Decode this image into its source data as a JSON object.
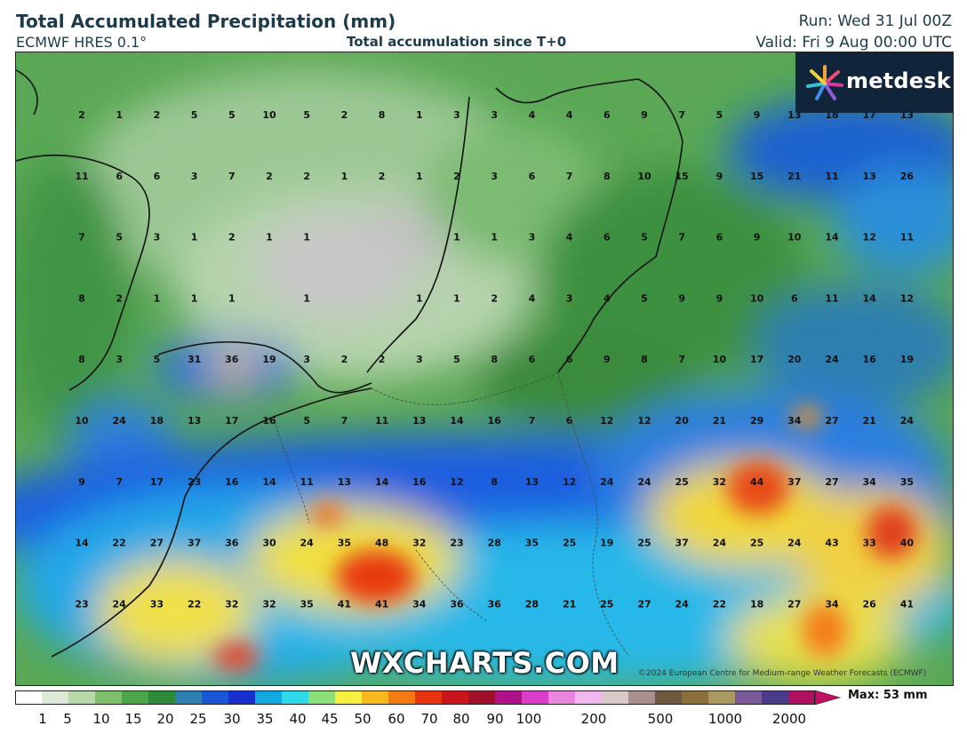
{
  "header": {
    "title": "Total Accumulated Precipitation (mm)",
    "model": "ECMWF HRES 0.1°",
    "subtitle": "Total accumulation since T+0",
    "run": "Run: Wed 31 Jul 00Z",
    "valid": "Valid: Fri 9 Aug 00:00 UTC"
  },
  "logo": {
    "text": "metdesk",
    "icon": "metdesk-star-icon"
  },
  "watermark": "WXCHARTS.COM",
  "copyright": "©2024 European Centre for Medium-range Weather Forecasts (ECMWF)",
  "colorbar": {
    "max_label": "Max: 53 mm",
    "ticks": [
      "1",
      "5",
      "10",
      "15",
      "20",
      "25",
      "30",
      "35",
      "40",
      "45",
      "50",
      "60",
      "70",
      "80",
      "90",
      "100",
      "200",
      "500",
      "1000",
      "2000"
    ],
    "colors": [
      "#ffffff",
      "#dfe9d8",
      "#b7d9a9",
      "#7fc06d",
      "#4ea64a",
      "#2d8a3a",
      "#2f7fb0",
      "#1b55d8",
      "#1a2fd0",
      "#12a8e0",
      "#2fd9e8",
      "#8be07a",
      "#f5f040",
      "#f8b81e",
      "#f57a14",
      "#e83310",
      "#c8141a",
      "#a0102a",
      "#b0128a",
      "#d93ec8",
      "#ea86e0",
      "#f2b8ee",
      "#d9c8c8",
      "#a89090",
      "#6e5a40",
      "#8a7038",
      "#a89a60",
      "#7a5a98",
      "#4a3a8a",
      "#b01060"
    ]
  },
  "map_values": [
    [
      "2",
      "1",
      "2",
      "5",
      "5",
      "10",
      "5",
      "2",
      "8",
      "1",
      "3",
      "3",
      "4",
      "4",
      "6",
      "9",
      "7",
      "5",
      "9",
      "13",
      "18",
      "17",
      "13"
    ],
    [
      "11",
      "6",
      "6",
      "3",
      "7",
      "2",
      "2",
      "1",
      "2",
      "1",
      "2",
      "3",
      "6",
      "7",
      "8",
      "10",
      "15",
      "9",
      "15",
      "21",
      "11",
      "13",
      "26"
    ],
    [
      "7",
      "5",
      "3",
      "1",
      "2",
      "1",
      "1",
      "",
      "",
      "",
      "1",
      "1",
      "3",
      "4",
      "6",
      "5",
      "7",
      "6",
      "9",
      "10",
      "14",
      "12",
      "11"
    ],
    [
      "8",
      "2",
      "1",
      "1",
      "1",
      "",
      "1",
      "",
      "",
      "1",
      "1",
      "2",
      "4",
      "3",
      "4",
      "5",
      "9",
      "9",
      "10",
      "6",
      "11",
      "14",
      "12"
    ],
    [
      "8",
      "3",
      "5",
      "31",
      "36",
      "19",
      "3",
      "2",
      "2",
      "3",
      "5",
      "8",
      "6",
      "6",
      "9",
      "8",
      "7",
      "10",
      "17",
      "20",
      "24",
      "16",
      "19"
    ],
    [
      "10",
      "24",
      "18",
      "13",
      "17",
      "16",
      "5",
      "7",
      "11",
      "13",
      "14",
      "16",
      "7",
      "6",
      "12",
      "12",
      "20",
      "21",
      "29",
      "34",
      "27",
      "21",
      "24"
    ],
    [
      "9",
      "7",
      "17",
      "23",
      "16",
      "14",
      "11",
      "13",
      "14",
      "16",
      "12",
      "8",
      "13",
      "12",
      "24",
      "24",
      "25",
      "32",
      "44",
      "37",
      "27",
      "34",
      "35"
    ],
    [
      "14",
      "22",
      "27",
      "37",
      "36",
      "30",
      "24",
      "35",
      "48",
      "32",
      "23",
      "28",
      "35",
      "25",
      "19",
      "25",
      "37",
      "24",
      "25",
      "24",
      "43",
      "33",
      "40"
    ],
    [
      "23",
      "24",
      "33",
      "22",
      "32",
      "32",
      "35",
      "41",
      "41",
      "34",
      "36",
      "36",
      "28",
      "21",
      "25",
      "27",
      "24",
      "22",
      "18",
      "27",
      "34",
      "26",
      "41"
    ]
  ]
}
